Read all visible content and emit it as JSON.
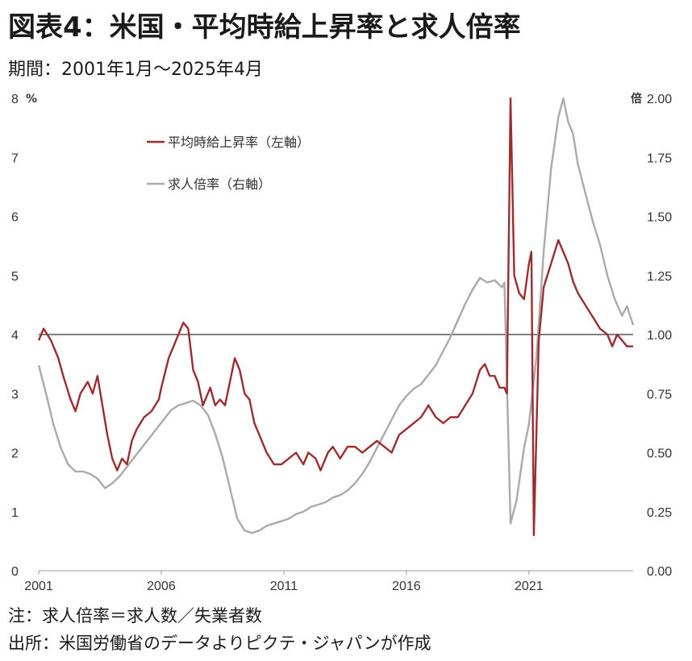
{
  "title": "図表4：米国・平均時給上昇率と求人倍率",
  "subtitle": "期間：2001年1月～2025年4月",
  "notes": [
    "注：求人倍率＝求人数／失業者数",
    "出所：米国労働省のデータよりピクテ・ジャパンが作成"
  ],
  "colors": {
    "wage": "#9b2d30",
    "openings": "#aaaaaa",
    "refline": "#555555"
  },
  "chart_data": {
    "type": "line",
    "title": "",
    "xlabel": "",
    "y_left": {
      "unit": "%",
      "ylim": [
        0,
        8
      ],
      "ticks": [
        "0",
        "1",
        "2",
        "3",
        "4",
        "5",
        "6",
        "7",
        "8"
      ]
    },
    "y_right": {
      "unit": "倍",
      "ylim": [
        0,
        2
      ],
      "ticks": [
        "0.00",
        "0.25",
        "0.50",
        "0.75",
        "1.00",
        "1.25",
        "1.50",
        "1.75",
        "2.00"
      ]
    },
    "x_range": [
      2001.0,
      2025.25
    ],
    "x_ticks": [
      {
        "value": 2001,
        "label": "2001"
      },
      {
        "value": 2006,
        "label": "2006"
      },
      {
        "value": 2011,
        "label": "2011"
      },
      {
        "value": 2016,
        "label": "2016"
      },
      {
        "value": 2021,
        "label": "2021"
      }
    ],
    "reference_line": {
      "axis": "right",
      "value": 1.0
    },
    "legend": {
      "placement": "top-left"
    },
    "series": [
      {
        "name": "平均時給上昇率（左軸）",
        "axis": "left",
        "points": [
          [
            2001.0,
            3.9
          ],
          [
            2001.2,
            4.1
          ],
          [
            2001.5,
            3.9
          ],
          [
            2001.8,
            3.6
          ],
          [
            2002.0,
            3.3
          ],
          [
            2002.3,
            2.9
          ],
          [
            2002.5,
            2.7
          ],
          [
            2002.7,
            3.0
          ],
          [
            2003.0,
            3.2
          ],
          [
            2003.2,
            3.0
          ],
          [
            2003.4,
            3.3
          ],
          [
            2003.6,
            2.8
          ],
          [
            2003.8,
            2.3
          ],
          [
            2004.0,
            1.9
          ],
          [
            2004.2,
            1.7
          ],
          [
            2004.4,
            1.9
          ],
          [
            2004.6,
            1.8
          ],
          [
            2004.8,
            2.2
          ],
          [
            2005.0,
            2.4
          ],
          [
            2005.3,
            2.6
          ],
          [
            2005.6,
            2.7
          ],
          [
            2005.9,
            2.9
          ],
          [
            2006.0,
            3.1
          ],
          [
            2006.3,
            3.6
          ],
          [
            2006.5,
            3.8
          ],
          [
            2006.7,
            4.0
          ],
          [
            2006.9,
            4.2
          ],
          [
            2007.1,
            4.1
          ],
          [
            2007.3,
            3.4
          ],
          [
            2007.5,
            3.2
          ],
          [
            2007.7,
            2.8
          ],
          [
            2008.0,
            3.1
          ],
          [
            2008.2,
            2.8
          ],
          [
            2008.4,
            2.9
          ],
          [
            2008.6,
            2.8
          ],
          [
            2008.8,
            3.2
          ],
          [
            2009.0,
            3.6
          ],
          [
            2009.2,
            3.4
          ],
          [
            2009.4,
            3.0
          ],
          [
            2009.6,
            2.9
          ],
          [
            2009.8,
            2.5
          ],
          [
            2010.0,
            2.3
          ],
          [
            2010.3,
            2.0
          ],
          [
            2010.6,
            1.8
          ],
          [
            2010.9,
            1.8
          ],
          [
            2011.2,
            1.9
          ],
          [
            2011.5,
            2.0
          ],
          [
            2011.8,
            1.8
          ],
          [
            2012.0,
            2.0
          ],
          [
            2012.3,
            1.9
          ],
          [
            2012.5,
            1.7
          ],
          [
            2012.8,
            2.0
          ],
          [
            2013.0,
            2.1
          ],
          [
            2013.3,
            1.9
          ],
          [
            2013.6,
            2.1
          ],
          [
            2013.9,
            2.1
          ],
          [
            2014.2,
            2.0
          ],
          [
            2014.5,
            2.1
          ],
          [
            2014.8,
            2.2
          ],
          [
            2015.1,
            2.1
          ],
          [
            2015.4,
            2.0
          ],
          [
            2015.7,
            2.3
          ],
          [
            2016.0,
            2.4
          ],
          [
            2016.3,
            2.5
          ],
          [
            2016.6,
            2.6
          ],
          [
            2016.9,
            2.8
          ],
          [
            2017.2,
            2.6
          ],
          [
            2017.5,
            2.5
          ],
          [
            2017.8,
            2.6
          ],
          [
            2018.1,
            2.6
          ],
          [
            2018.4,
            2.8
          ],
          [
            2018.7,
            3.0
          ],
          [
            2019.0,
            3.4
          ],
          [
            2019.2,
            3.5
          ],
          [
            2019.4,
            3.3
          ],
          [
            2019.6,
            3.3
          ],
          [
            2019.8,
            3.1
          ],
          [
            2020.0,
            3.1
          ],
          [
            2020.1,
            3.0
          ],
          [
            2020.25,
            8.0
          ],
          [
            2020.4,
            5.0
          ],
          [
            2020.6,
            4.7
          ],
          [
            2020.8,
            4.6
          ],
          [
            2021.0,
            5.2
          ],
          [
            2021.1,
            5.4
          ],
          [
            2021.2,
            0.6
          ],
          [
            2021.4,
            3.9
          ],
          [
            2021.6,
            4.8
          ],
          [
            2021.9,
            5.2
          ],
          [
            2022.2,
            5.6
          ],
          [
            2022.4,
            5.4
          ],
          [
            2022.6,
            5.2
          ],
          [
            2022.8,
            4.9
          ],
          [
            2023.0,
            4.7
          ],
          [
            2023.3,
            4.5
          ],
          [
            2023.6,
            4.3
          ],
          [
            2023.9,
            4.1
          ],
          [
            2024.2,
            4.0
          ],
          [
            2024.4,
            3.8
          ],
          [
            2024.6,
            4.0
          ],
          [
            2024.8,
            3.9
          ],
          [
            2025.0,
            3.8
          ],
          [
            2025.25,
            3.8
          ]
        ]
      },
      {
        "name": "求人倍率（右軸）",
        "axis": "right",
        "points": [
          [
            2001.0,
            0.87
          ],
          [
            2001.3,
            0.75
          ],
          [
            2001.6,
            0.62
          ],
          [
            2001.9,
            0.52
          ],
          [
            2002.2,
            0.45
          ],
          [
            2002.5,
            0.42
          ],
          [
            2002.8,
            0.42
          ],
          [
            2003.1,
            0.41
          ],
          [
            2003.4,
            0.39
          ],
          [
            2003.7,
            0.35
          ],
          [
            2004.0,
            0.37
          ],
          [
            2004.3,
            0.4
          ],
          [
            2004.6,
            0.44
          ],
          [
            2004.9,
            0.48
          ],
          [
            2005.2,
            0.52
          ],
          [
            2005.5,
            0.56
          ],
          [
            2005.8,
            0.6
          ],
          [
            2006.1,
            0.64
          ],
          [
            2006.4,
            0.68
          ],
          [
            2006.7,
            0.7
          ],
          [
            2007.0,
            0.71
          ],
          [
            2007.3,
            0.72
          ],
          [
            2007.6,
            0.7
          ],
          [
            2007.9,
            0.66
          ],
          [
            2008.2,
            0.58
          ],
          [
            2008.5,
            0.48
          ],
          [
            2008.8,
            0.35
          ],
          [
            2009.1,
            0.22
          ],
          [
            2009.4,
            0.17
          ],
          [
            2009.7,
            0.16
          ],
          [
            2010.0,
            0.17
          ],
          [
            2010.3,
            0.19
          ],
          [
            2010.6,
            0.2
          ],
          [
            2010.9,
            0.21
          ],
          [
            2011.2,
            0.22
          ],
          [
            2011.5,
            0.24
          ],
          [
            2011.8,
            0.25
          ],
          [
            2012.1,
            0.27
          ],
          [
            2012.4,
            0.28
          ],
          [
            2012.7,
            0.29
          ],
          [
            2013.0,
            0.31
          ],
          [
            2013.3,
            0.32
          ],
          [
            2013.6,
            0.34
          ],
          [
            2013.9,
            0.37
          ],
          [
            2014.2,
            0.41
          ],
          [
            2014.5,
            0.46
          ],
          [
            2014.8,
            0.52
          ],
          [
            2015.1,
            0.58
          ],
          [
            2015.4,
            0.64
          ],
          [
            2015.7,
            0.7
          ],
          [
            2016.0,
            0.74
          ],
          [
            2016.3,
            0.77
          ],
          [
            2016.6,
            0.79
          ],
          [
            2016.9,
            0.83
          ],
          [
            2017.2,
            0.87
          ],
          [
            2017.5,
            0.93
          ],
          [
            2017.8,
            0.99
          ],
          [
            2018.1,
            1.06
          ],
          [
            2018.4,
            1.13
          ],
          [
            2018.7,
            1.19
          ],
          [
            2019.0,
            1.24
          ],
          [
            2019.3,
            1.22
          ],
          [
            2019.6,
            1.23
          ],
          [
            2019.9,
            1.2
          ],
          [
            2020.0,
            1.22
          ],
          [
            2020.25,
            0.2
          ],
          [
            2020.5,
            0.3
          ],
          [
            2020.8,
            0.52
          ],
          [
            2021.0,
            0.62
          ],
          [
            2021.3,
            0.9
          ],
          [
            2021.6,
            1.35
          ],
          [
            2021.9,
            1.7
          ],
          [
            2022.2,
            1.92
          ],
          [
            2022.4,
            2.0
          ],
          [
            2022.6,
            1.9
          ],
          [
            2022.8,
            1.85
          ],
          [
            2023.0,
            1.72
          ],
          [
            2023.3,
            1.6
          ],
          [
            2023.6,
            1.48
          ],
          [
            2023.9,
            1.38
          ],
          [
            2024.2,
            1.25
          ],
          [
            2024.5,
            1.15
          ],
          [
            2024.8,
            1.08
          ],
          [
            2025.0,
            1.12
          ],
          [
            2025.25,
            1.04
          ]
        ]
      }
    ]
  }
}
